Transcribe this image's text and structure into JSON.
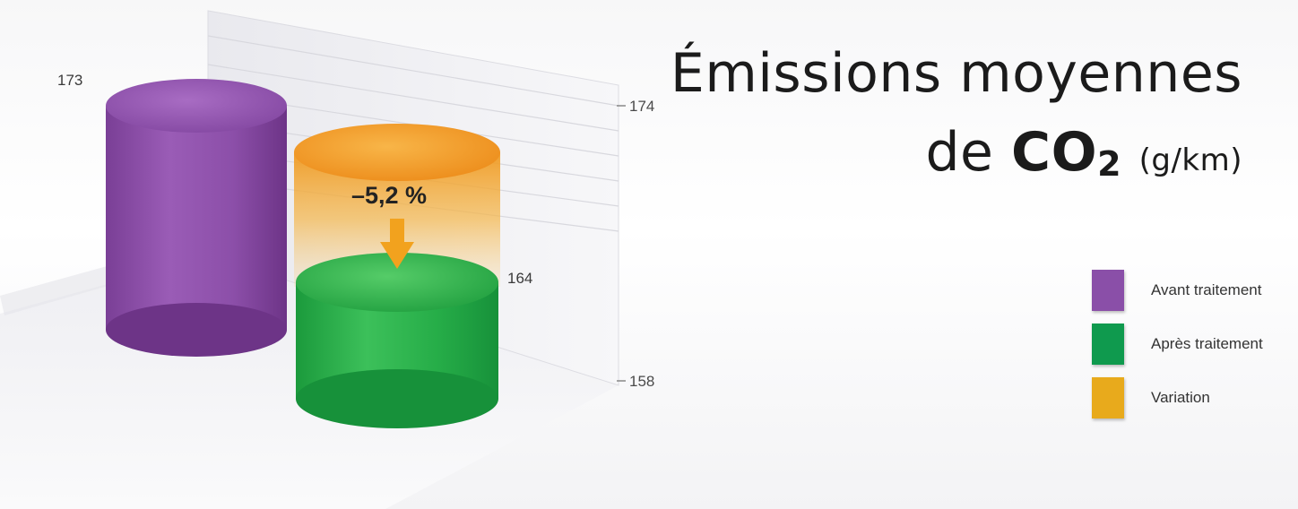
{
  "title": {
    "line1": "Émissions moyennes",
    "line2_prefix": "de ",
    "chem_main": "CO",
    "chem_sub": "2",
    "unit": "(g/km)"
  },
  "chart_data": {
    "type": "bar",
    "categories": [
      "Avant traitement",
      "Après traitement"
    ],
    "values": [
      173,
      164
    ],
    "y_ticks": [
      174,
      158
    ],
    "variation_label": "–5,2 %",
    "legend": [
      {
        "label": "Avant traitement",
        "color": "#8a4fa8"
      },
      {
        "label": "Après traitement",
        "color": "#0f9a4e"
      },
      {
        "label": "Variation",
        "color": "#e8aa1c"
      }
    ],
    "colors": {
      "before": "#8a4fa8",
      "after": "#1faa45",
      "variation": "#f0a020"
    }
  }
}
